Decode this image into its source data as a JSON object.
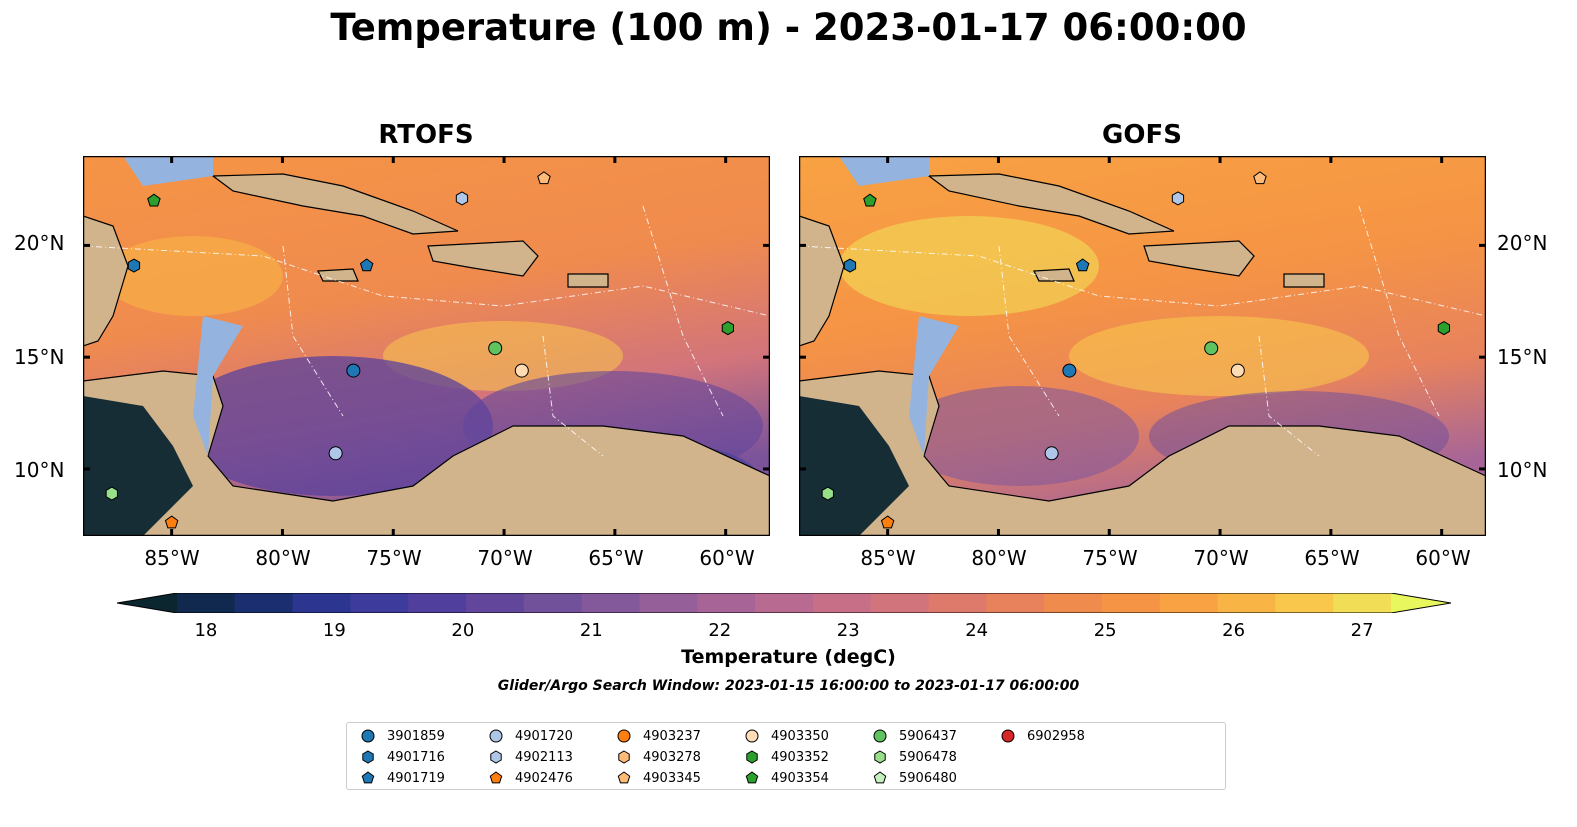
{
  "figure": {
    "title": "Temperature (100 m) - 2023-01-17 06:00:00",
    "search_window": "Glider/Argo Search Window: 2023-01-15 16:00:00 to 2023-01-17 06:00:00"
  },
  "panels": [
    {
      "title": "RTOFS"
    },
    {
      "title": "GOFS"
    }
  ],
  "axes": {
    "lon_range": [
      -89,
      -58
    ],
    "lat_range": [
      7,
      24
    ],
    "x_ticks": [
      "85°W",
      "80°W",
      "75°W",
      "70°W",
      "65°W",
      "60°W"
    ],
    "x_tick_values": [
      -85,
      -80,
      -75,
      -70,
      -65,
      -60
    ],
    "y_ticks": [
      "20°N",
      "15°N",
      "10°N"
    ],
    "y_tick_values": [
      20,
      15,
      10
    ]
  },
  "colorbar": {
    "label": "Temperature (degC)",
    "min": 18,
    "max": 27,
    "step": 0.5,
    "ticks": [
      "18",
      "19",
      "20",
      "21",
      "22",
      "23",
      "24",
      "25",
      "26",
      "27"
    ],
    "extend": "both",
    "colors": [
      "#0c2630",
      "#11294e",
      "#1b2f70",
      "#2c3590",
      "#3d3b9c",
      "#513f9e",
      "#62469c",
      "#72519b",
      "#83599b",
      "#955f99",
      "#a76597",
      "#b86a90",
      "#c66f87",
      "#d2747b",
      "#dd7a6c",
      "#e7825d",
      "#f08b4e",
      "#f59445",
      "#f8a243",
      "#f9b446",
      "#f8c74c",
      "#f2de56",
      "#e9f75e"
    ]
  },
  "legend": {
    "items": [
      {
        "label": "3901859",
        "marker": "circle",
        "color": "#1f77b4"
      },
      {
        "label": "4901716",
        "marker": "hexagon",
        "color": "#1f77b4"
      },
      {
        "label": "4901719",
        "marker": "pentagon",
        "color": "#1f77b4"
      },
      {
        "label": "4901720",
        "marker": "circle",
        "color": "#aec7e8"
      },
      {
        "label": "4902113",
        "marker": "hexagon",
        "color": "#aec7e8"
      },
      {
        "label": "4902476",
        "marker": "pentagon",
        "color": "#ff7f0e"
      },
      {
        "label": "4903237",
        "marker": "circle",
        "color": "#ff7f0e"
      },
      {
        "label": "4903278",
        "marker": "hexagon",
        "color": "#ffbb78"
      },
      {
        "label": "4903345",
        "marker": "pentagon",
        "color": "#ffbb78"
      },
      {
        "label": "4903350",
        "marker": "circle",
        "color": "#ffdcb4"
      },
      {
        "label": "4903352",
        "marker": "hexagon",
        "color": "#2ca02c"
      },
      {
        "label": "4903354",
        "marker": "pentagon",
        "color": "#2ca02c"
      },
      {
        "label": "5906437",
        "marker": "circle",
        "color": "#5fc45f"
      },
      {
        "label": "5906478",
        "marker": "hexagon",
        "color": "#98df8a"
      },
      {
        "label": "5906480",
        "marker": "pentagon",
        "color": "#c7f0c0"
      },
      {
        "label": "6902958",
        "marker": "circle",
        "color": "#d62728"
      }
    ]
  },
  "floats_on_map": [
    {
      "id": "3901859",
      "lon": -76.8,
      "lat": 14.4
    },
    {
      "id": "4901716",
      "lon": -86.7,
      "lat": 19.1
    },
    {
      "id": "4901719",
      "lon": -76.2,
      "lat": 19.1
    },
    {
      "id": "4901720",
      "lon": -77.6,
      "lat": 10.7
    },
    {
      "id": "4902113",
      "lon": -71.9,
      "lat": 22.1
    },
    {
      "id": "4902476",
      "lon": -85.0,
      "lat": 7.6
    },
    {
      "id": "4903345",
      "lon": -68.2,
      "lat": 23.0
    },
    {
      "id": "4903350",
      "lon": -69.2,
      "lat": 14.4
    },
    {
      "id": "4903352",
      "lon": -59.9,
      "lat": 16.3
    },
    {
      "id": "4903354",
      "lon": -85.8,
      "lat": 22.0
    },
    {
      "id": "5906437",
      "lon": -70.4,
      "lat": 15.4
    },
    {
      "id": "5906478",
      "lon": -87.7,
      "lat": 8.9
    }
  ]
}
